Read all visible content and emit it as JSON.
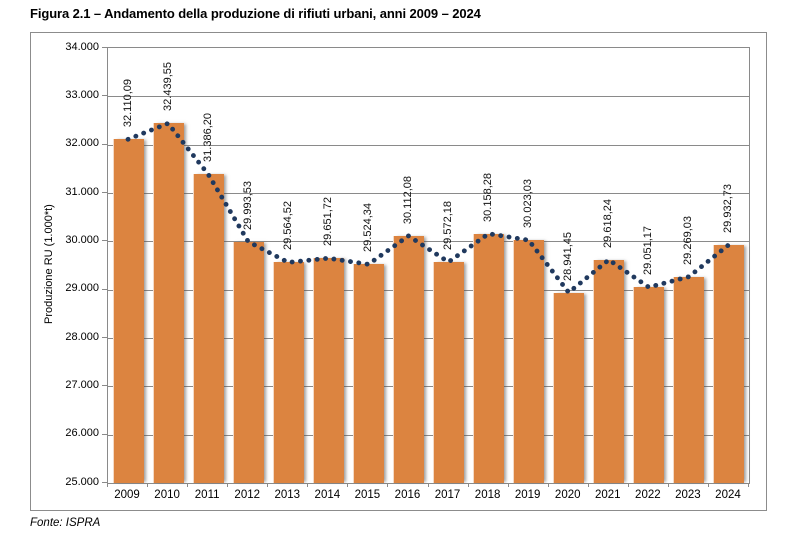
{
  "figure": {
    "title": "Figura 2.1 – Andamento della produzione di rifiuti urbani, anni 2009 – 2024",
    "source": "Fonte: ISPRA"
  },
  "chart_data": {
    "type": "bar",
    "title": "Figura 2.1 – Andamento della produzione di rifiuti urbani, anni 2009 – 2024",
    "xlabel": "",
    "ylabel": "Produzione RU (1.000*t)",
    "ylim": [
      25000,
      34000
    ],
    "ytick_step": 1000,
    "ytick_labels": [
      "34.000",
      "33.000",
      "32.000",
      "31.000",
      "30.000",
      "29.000",
      "28.000",
      "27.000",
      "26.000",
      "25.000"
    ],
    "grid": true,
    "legend_position": "none",
    "categories": [
      "2009",
      "2010",
      "2011",
      "2012",
      "2013",
      "2014",
      "2015",
      "2016",
      "2017",
      "2018",
      "2019",
      "2020",
      "2021",
      "2022",
      "2023",
      "2024"
    ],
    "series": [
      {
        "name": "Produzione RU (barre)",
        "type": "bar",
        "color": "#DC8440",
        "values": [
          32110.09,
          32439.55,
          31386.2,
          29993.53,
          29564.52,
          29651.72,
          29524.34,
          30112.08,
          29572.18,
          30158.28,
          30023.03,
          28941.45,
          29618.24,
          29051.17,
          29269.03,
          29932.73
        ]
      },
      {
        "name": "Produzione RU (linea punteggiata)",
        "type": "dotted-line",
        "color": "#20395E",
        "values": [
          32110.09,
          32439.55,
          31386.2,
          29993.53,
          29564.52,
          29651.72,
          29524.34,
          30112.08,
          29572.18,
          30158.28,
          30023.03,
          28941.45,
          29618.24,
          29051.17,
          29269.03,
          29932.73
        ]
      }
    ],
    "data_labels": [
      "32.110,09",
      "32.439,55",
      "31.386,20",
      "29.993,53",
      "29.564,52",
      "29.651,72",
      "29.524,34",
      "30.112,08",
      "29.572,18",
      "30.158,28",
      "30.023,03",
      "28.941,45",
      "29.618,24",
      "29.051,17",
      "29.269,03",
      "29.932,73"
    ]
  },
  "colors": {
    "bar": "#DC8440",
    "line": "#20395E",
    "grid": "#8A8A8A",
    "frame": "#8C8C8C",
    "text": "#000000"
  }
}
